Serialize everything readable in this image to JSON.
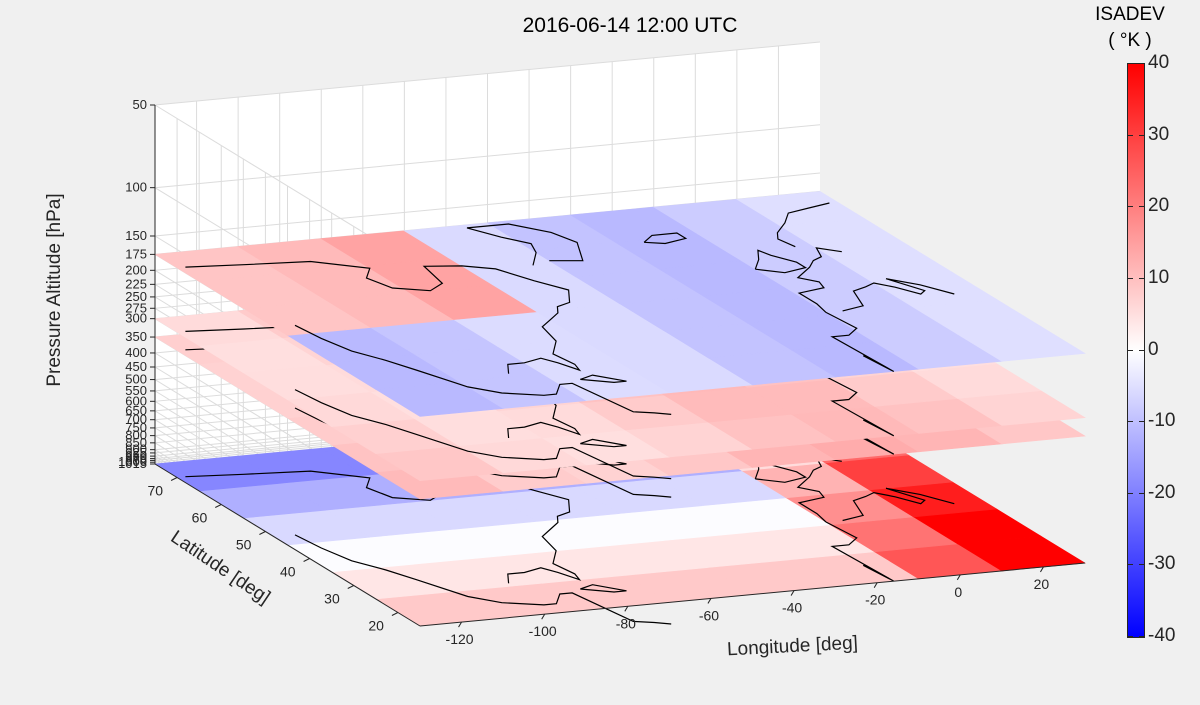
{
  "chart_data": {
    "type": "heatmap",
    "title": "2016-06-14 12:00 UTC",
    "xlabel": "Longitude [deg]",
    "ylabel": "Latitude [deg]",
    "zlabel": "Pressure Altitude [hPa]",
    "xticks": [
      -120,
      -100,
      -80,
      -60,
      -40,
      -20,
      0,
      20
    ],
    "yticks": [
      20,
      30,
      40,
      50,
      60,
      70
    ],
    "zticks": [
      50,
      100,
      150,
      175,
      200,
      225,
      250,
      275,
      300,
      350,
      400,
      450,
      500,
      550,
      600,
      650,
      700,
      750,
      800,
      850,
      900,
      925,
      950,
      970,
      985,
      1000,
      1015
    ],
    "zlim": [
      50,
      1015
    ],
    "xlim": [
      -130,
      30
    ],
    "ylim": [
      15,
      75
    ],
    "grid": true,
    "legend": "none",
    "colorbar": {
      "title_line1": "ISADEV",
      "title_line2": "( °K )",
      "ticks": [
        40,
        30,
        20,
        10,
        0,
        -10,
        -20,
        -30,
        -40
      ],
      "clim": [
        -40,
        40
      ],
      "colormap": [
        "#0000ff",
        "#ffffff",
        "#ff0000"
      ]
    },
    "slices": [
      {
        "pressure": 175,
        "dominant_isadev": -5
      },
      {
        "pressure": 300,
        "dominant_isadev": 8
      },
      {
        "pressure": 350,
        "dominant_isadev": 10
      },
      {
        "pressure": 1015,
        "dominant_isadev": 5
      }
    ]
  },
  "colors": {
    "axis": "#262626",
    "grid": "#dcdcdc",
    "coast": "#000000",
    "background": "#f0f0f0"
  }
}
